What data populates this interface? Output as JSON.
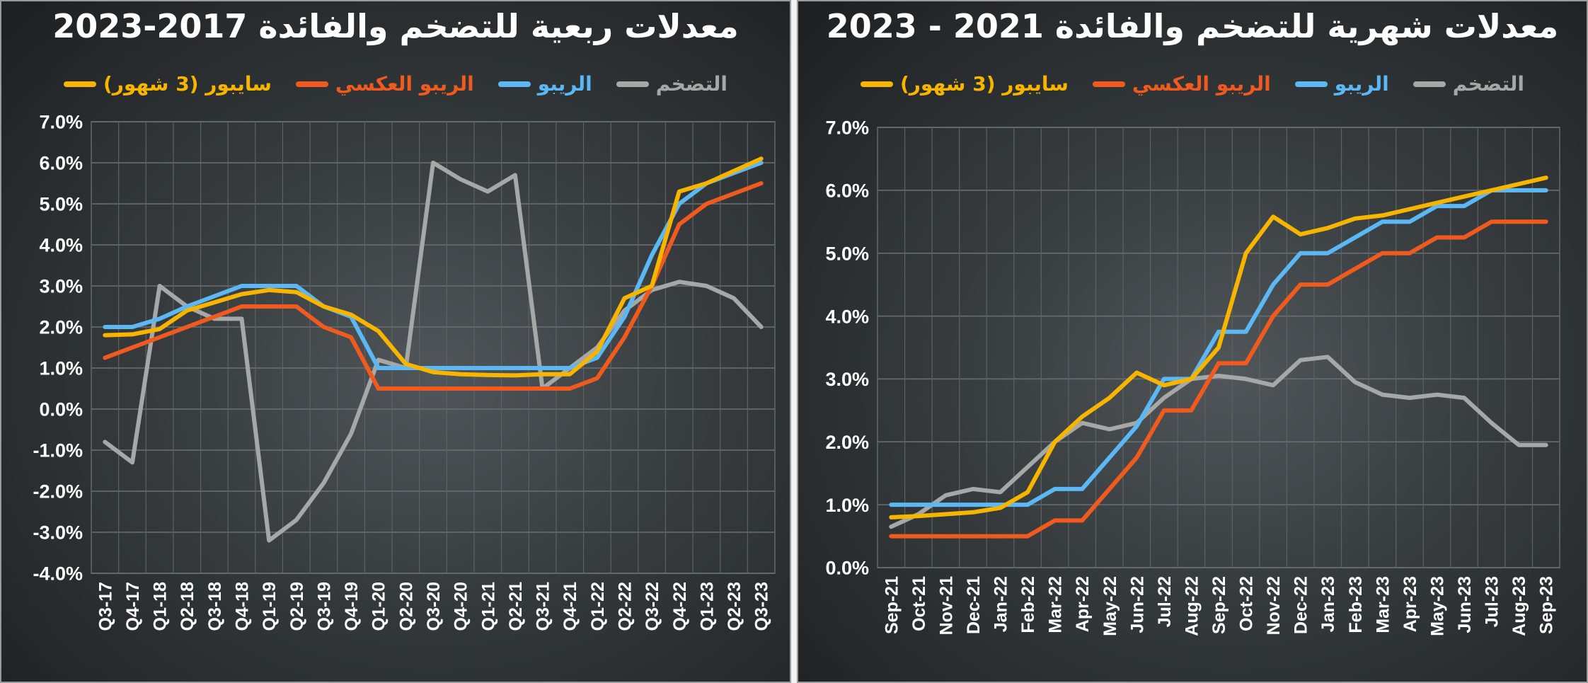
{
  "chart_data": [
    {
      "type": "line",
      "title": "معدلات ربعية للتضخم والفائدة 2017-2023",
      "categories": [
        "Q3-17",
        "Q4-17",
        "Q1-18",
        "Q2-18",
        "Q3-18",
        "Q4-18",
        "Q1-19",
        "Q2-19",
        "Q3-19",
        "Q4-19",
        "Q1-20",
        "Q2-20",
        "Q3-20",
        "Q4-20",
        "Q1-21",
        "Q2-21",
        "Q3-21",
        "Q4-21",
        "Q1-22",
        "Q2-22",
        "Q3-22",
        "Q4-22",
        "Q1-23",
        "Q2-23",
        "Q3-23"
      ],
      "y_ticks": [
        "7.0%",
        "6.0%",
        "5.0%",
        "4.0%",
        "3.0%",
        "2.0%",
        "1.0%",
        "0.0%",
        "-1.0%",
        "-2.0%",
        "-3.0%",
        "-4.0%"
      ],
      "ylim": [
        -4,
        7
      ],
      "grid": true,
      "legend_position": "top",
      "series": [
        {
          "name": "التضخم",
          "color": "#a6a8a7",
          "values": [
            -0.8,
            -1.3,
            3.0,
            2.5,
            2.2,
            2.2,
            -3.2,
            -2.7,
            -1.8,
            -0.6,
            1.2,
            1.0,
            6.0,
            5.6,
            5.3,
            5.7,
            0.5,
            1.0,
            1.5,
            2.4,
            2.9,
            3.1,
            3.0,
            2.7,
            2.0
          ]
        },
        {
          "name": "الريبو",
          "color": "#5bb8f5",
          "values": [
            2.0,
            2.0,
            2.2,
            2.5,
            2.75,
            3.0,
            3.0,
            3.0,
            2.5,
            2.25,
            1.0,
            1.0,
            1.0,
            1.0,
            1.0,
            1.0,
            1.0,
            1.0,
            1.25,
            2.25,
            3.75,
            5.0,
            5.5,
            5.75,
            6.0
          ]
        },
        {
          "name": "الريبو العكسي",
          "color": "#f05a1e",
          "values": [
            1.25,
            1.5,
            1.75,
            2.0,
            2.25,
            2.5,
            2.5,
            2.5,
            2.0,
            1.75,
            0.5,
            0.5,
            0.5,
            0.5,
            0.5,
            0.5,
            0.5,
            0.5,
            0.75,
            1.75,
            3.0,
            4.5,
            5.0,
            5.25,
            5.5
          ]
        },
        {
          "name": "سايبور (3 شهور)",
          "color": "#f7b500",
          "values": [
            1.8,
            1.82,
            1.95,
            2.4,
            2.6,
            2.8,
            2.9,
            2.85,
            2.5,
            2.3,
            1.9,
            1.1,
            0.9,
            0.85,
            0.83,
            0.82,
            0.85,
            0.85,
            1.4,
            2.7,
            3.0,
            5.3,
            5.5,
            5.8,
            6.1
          ]
        }
      ]
    },
    {
      "type": "line",
      "title": "معدلات شهرية للتضخم والفائدة 2021 - 2023",
      "categories": [
        "Sep-21",
        "Oct-21",
        "Nov-21",
        "Dec-21",
        "Jan-22",
        "Feb-22",
        "Mar-22",
        "Apr-22",
        "May-22",
        "Jun-22",
        "Jul-22",
        "Aug-22",
        "Sep-22",
        "Oct-22",
        "Nov-22",
        "Dec-22",
        "Jan-23",
        "Feb-23",
        "Mar-23",
        "Apr-23",
        "May-23",
        "Jun-23",
        "Jul-23",
        "Aug-23",
        "Sep-23"
      ],
      "y_ticks": [
        "7.0%",
        "6.0%",
        "5.0%",
        "4.0%",
        "3.0%",
        "2.0%",
        "1.0%",
        "0.0%"
      ],
      "ylim": [
        0,
        7
      ],
      "grid": true,
      "legend_position": "top",
      "series": [
        {
          "name": "التضخم",
          "color": "#a6a8a7",
          "values": [
            0.65,
            0.85,
            1.15,
            1.25,
            1.2,
            1.6,
            2.0,
            2.3,
            2.2,
            2.3,
            2.7,
            3.0,
            3.05,
            3.0,
            2.9,
            3.3,
            3.35,
            2.95,
            2.75,
            2.7,
            2.75,
            2.7,
            2.3,
            1.95,
            1.95
          ]
        },
        {
          "name": "الريبو",
          "color": "#5bb8f5",
          "values": [
            1.0,
            1.0,
            1.0,
            1.0,
            1.0,
            1.0,
            1.25,
            1.25,
            1.75,
            2.25,
            3.0,
            3.0,
            3.75,
            3.75,
            4.5,
            5.0,
            5.0,
            5.25,
            5.5,
            5.5,
            5.75,
            5.75,
            6.0,
            6.0,
            6.0
          ]
        },
        {
          "name": "الريبو العكسي",
          "color": "#f05a1e",
          "values": [
            0.5,
            0.5,
            0.5,
            0.5,
            0.5,
            0.5,
            0.75,
            0.75,
            1.25,
            1.75,
            2.5,
            2.5,
            3.25,
            3.25,
            4.0,
            4.5,
            4.5,
            4.75,
            5.0,
            5.0,
            5.25,
            5.25,
            5.5,
            5.5,
            5.5
          ]
        },
        {
          "name": "سايبور (3 شهور)",
          "color": "#f7b500",
          "values": [
            0.8,
            0.82,
            0.85,
            0.88,
            0.95,
            1.2,
            2.0,
            2.4,
            2.7,
            3.1,
            2.9,
            3.0,
            3.5,
            5.0,
            5.58,
            5.3,
            5.4,
            5.55,
            5.6,
            5.7,
            5.8,
            5.9,
            6.0,
            6.1,
            6.2
          ]
        }
      ]
    }
  ]
}
